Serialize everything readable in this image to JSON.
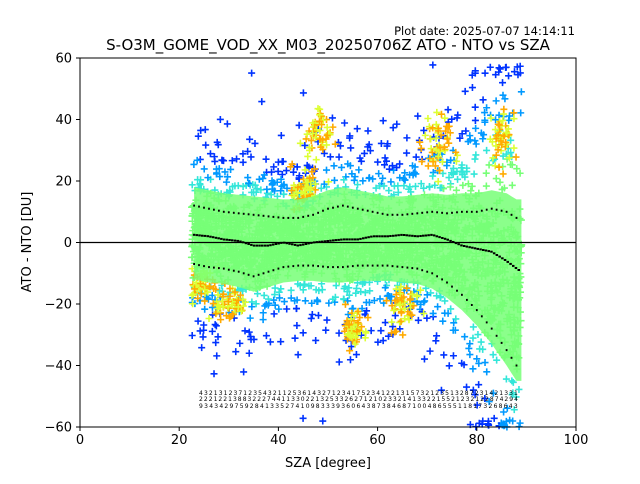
{
  "header": {
    "plot_date": "Plot date: 2025-07-07 14:14:11",
    "title": "S-O3M_GOME_VOD_XX_M03_20250706Z ATO - NTO vs SZA"
  },
  "chart_data": {
    "type": "scatter",
    "title": "S-O3M_GOME_VOD_XX_M03_20250706Z ATO - NTO vs SZA",
    "xlabel": "SZA [degree]",
    "ylabel": "ATO - NTO [DU]",
    "xlim": [
      0,
      100
    ],
    "ylim": [
      -60,
      60
    ],
    "xticks": [
      0,
      20,
      40,
      60,
      80,
      100
    ],
    "yticks": [
      -60,
      -40,
      -20,
      0,
      20,
      40,
      60
    ],
    "zero_line": 0,
    "density_colors": [
      "#0033ff",
      "#0099ff",
      "#33e6d9",
      "#77ff77",
      "#ddff33",
      "#ffaa00"
    ],
    "sza_range": [
      22.5,
      89
    ],
    "median": {
      "x": [
        23,
        26,
        29,
        32,
        35,
        38,
        41,
        44,
        47,
        50,
        53,
        56,
        59,
        62,
        65,
        68,
        71,
        74,
        77,
        80,
        83,
        86,
        88.5
      ],
      "y": [
        2.5,
        2,
        1,
        0.5,
        -1,
        -1,
        0,
        -1,
        0,
        0.5,
        1,
        1,
        2,
        2,
        2.5,
        2,
        2.5,
        1,
        -1,
        -2,
        -3,
        -6,
        -9
      ]
    },
    "upper_percentile": {
      "x": [
        23,
        26,
        29,
        32,
        35,
        38,
        41,
        44,
        47,
        50,
        53,
        56,
        59,
        62,
        65,
        68,
        71,
        74,
        77,
        80,
        83,
        86,
        88
      ],
      "y": [
        12,
        11,
        10,
        9.5,
        9,
        8.5,
        8,
        8,
        9,
        11,
        12,
        11,
        10,
        9,
        9,
        9.5,
        10,
        9.5,
        10,
        10,
        11,
        10,
        8
      ]
    },
    "lower_percentile": {
      "x": [
        23,
        26,
        29,
        32,
        35,
        38,
        41,
        44,
        47,
        50,
        53,
        56,
        59,
        62,
        65,
        68,
        71,
        74,
        77,
        80,
        83,
        86,
        88
      ],
      "y": [
        -7,
        -8,
        -8.5,
        -9.5,
        -11,
        -9.5,
        -8,
        -7.5,
        -7.5,
        -8,
        -8,
        -7.5,
        -7.5,
        -7.5,
        -8,
        -8.5,
        -10,
        -13,
        -17,
        -22,
        -28,
        -35,
        -40
      ]
    },
    "count_rows": {
      "row1": [
        "4",
        "3",
        "2",
        "1",
        "3",
        "1",
        "2",
        "3",
        "7",
        "1",
        "2",
        "3",
        "5",
        "4",
        "3",
        "2",
        "1",
        "1",
        "2",
        "5",
        "3",
        "6",
        "1",
        "4",
        "3",
        "2",
        "7",
        "1",
        "2",
        "3",
        "4",
        "1",
        "7",
        "5",
        "2",
        "3",
        "4",
        "1",
        "2",
        "2",
        "1",
        "3",
        "1",
        "5",
        "7",
        "3",
        "2",
        "1",
        "2",
        "3",
        "5",
        "1",
        "3",
        "2",
        "8",
        "7",
        "2",
        "3",
        "1",
        "4",
        "2",
        "1",
        "3",
        "3",
        "1"
      ],
      "row2": [
        "2",
        "2",
        "2",
        "1",
        "2",
        "2",
        "1",
        "3",
        "8",
        "8",
        "3",
        "2",
        "2",
        "2",
        "7",
        "4",
        "4",
        "1",
        "1",
        "3",
        "3",
        "0",
        "2",
        "2",
        "1",
        "3",
        "2",
        "5",
        "3",
        "3",
        "2",
        "6",
        "2",
        "7",
        "1",
        "2",
        "1",
        "0",
        "2",
        "3",
        "3",
        "2",
        "1",
        "4",
        "1",
        "3",
        "3",
        "2",
        "2",
        "1",
        "5",
        "5",
        "2",
        "1",
        "2",
        "3",
        "2",
        "1",
        "2",
        "2",
        "8",
        "7",
        "4",
        "2",
        "9",
        "4"
      ],
      "row3": [
        "9",
        "3",
        "4",
        "3",
        "4",
        "2",
        "9",
        "7",
        "5",
        "9",
        "2",
        "8",
        "4",
        "1",
        "3",
        "3",
        "5",
        "2",
        "7",
        "4",
        "1",
        "0",
        "9",
        "8",
        "3",
        "3",
        "3",
        "9",
        "3",
        "6",
        "0",
        "6",
        "4",
        "3",
        "8",
        "7",
        "3",
        "8",
        "4",
        "6",
        "8",
        "7",
        "1",
        "0",
        "0",
        "4",
        "8",
        "6",
        "5",
        "5",
        "5",
        "1",
        "1",
        "8",
        "1",
        "7",
        "3",
        "2",
        "6",
        "8",
        "6",
        "4",
        "3"
      ]
    }
  }
}
